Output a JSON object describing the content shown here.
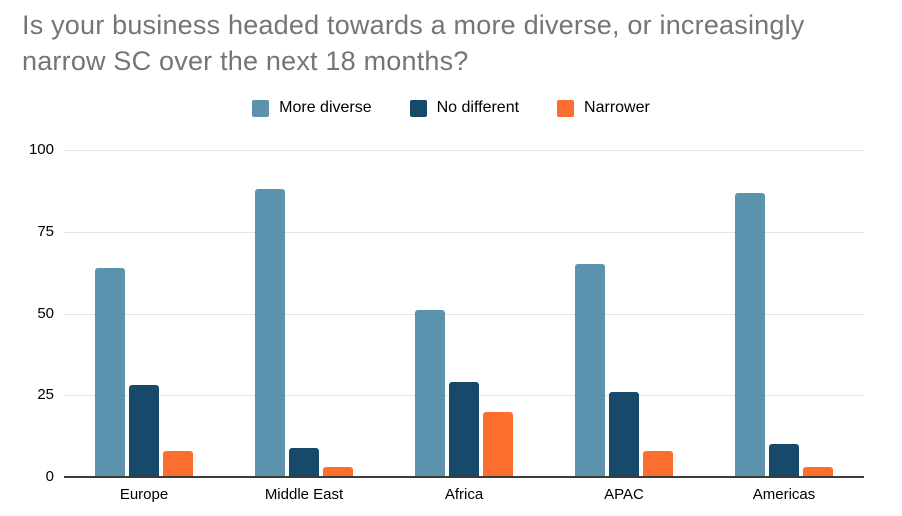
{
  "chart_data": {
    "type": "bar",
    "title": "Is your business headed towards a more diverse, or increasingly narrow SC over the next 18 months?",
    "categories": [
      "Europe",
      "Middle East",
      "Africa",
      "APAC",
      "Americas"
    ],
    "series": [
      {
        "name": "More diverse",
        "color": "#5B92AE",
        "values": [
          64,
          88,
          51,
          65,
          87
        ]
      },
      {
        "name": "No different",
        "color": "#17496B",
        "values": [
          28,
          9,
          29,
          26,
          10
        ]
      },
      {
        "name": "Narrower",
        "color": "#FB6E2E",
        "values": [
          8,
          3,
          20,
          8,
          3
        ]
      }
    ],
    "xlabel": "",
    "ylabel": "",
    "ylim": [
      0,
      100
    ],
    "yticks": [
      0,
      25,
      50,
      75,
      100
    ],
    "grid": "horizontal",
    "legend_position": "top"
  },
  "colors": {
    "title_text": "#757575",
    "grid_line": "#e3e3e3",
    "axis_line": "#3c3c3c",
    "tick_text": "#000000",
    "background": "#ffffff"
  }
}
